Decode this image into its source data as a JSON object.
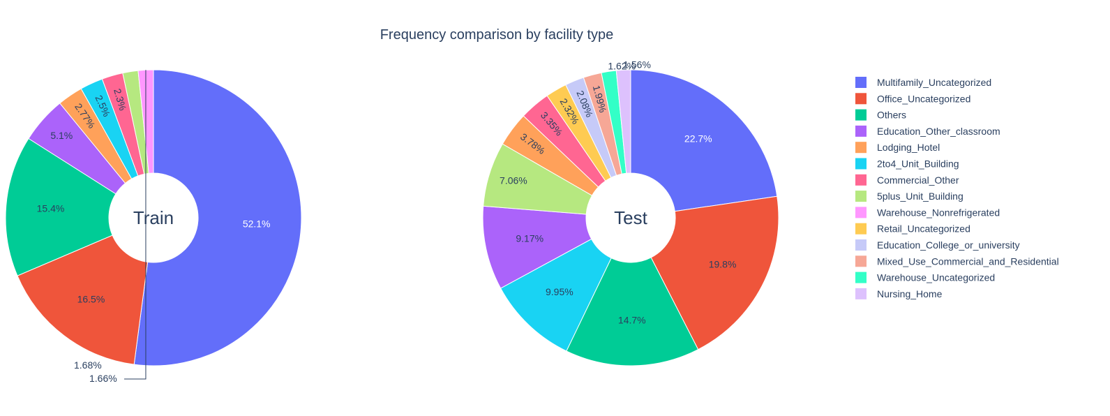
{
  "chart_data": [
    {
      "type": "pie",
      "title": "Frequency comparison by facility type",
      "center_label": "Train",
      "labels": [
        "Multifamily_Uncategorized",
        "Office_Uncategorized",
        "Others",
        "Education_Other_classroom",
        "Lodging_Hotel",
        "2to4_Unit_Building",
        "Commercial_Other",
        "5plus_Unit_Building",
        "Warehouse_Nonrefrigerated"
      ],
      "values": [
        52.1,
        16.5,
        15.4,
        5.1,
        2.77,
        2.5,
        2.3,
        1.68,
        1.66
      ],
      "value_labels": [
        "52.1%",
        "16.5%",
        "15.4%",
        "5.1%",
        "2.77%",
        "2.5%",
        "2.3%",
        "1.68%",
        "1.66%"
      ]
    },
    {
      "type": "pie",
      "center_label": "Test",
      "labels": [
        "Multifamily_Uncategorized",
        "Office_Uncategorized",
        "Others",
        "2to4_Unit_Building",
        "Education_Other_classroom",
        "5plus_Unit_Building",
        "Lodging_Hotel",
        "Commercial_Other",
        "Retail_Uncategorized",
        "Education_College_or_university",
        "Mixed_Use_Commercial_and_Residential",
        "Warehouse_Uncategorized",
        "Nursing_Home"
      ],
      "values": [
        22.7,
        19.8,
        14.7,
        9.95,
        9.17,
        7.06,
        3.78,
        3.35,
        2.32,
        2.08,
        1.99,
        1.62,
        1.56
      ],
      "value_labels": [
        "22.7%",
        "19.8%",
        "14.7%",
        "9.95%",
        "9.17%",
        "7.06%",
        "3.78%",
        "3.35%",
        "2.32%",
        "2.08%",
        "1.99%",
        "1.62%",
        "1.56%"
      ]
    }
  ],
  "legend": {
    "placement": "right",
    "items": [
      {
        "label": "Multifamily_Uncategorized",
        "color": "#636efa"
      },
      {
        "label": "Office_Uncategorized",
        "color": "#ef553b"
      },
      {
        "label": "Others",
        "color": "#00cc96"
      },
      {
        "label": "Education_Other_classroom",
        "color": "#ab63fa"
      },
      {
        "label": "Lodging_Hotel",
        "color": "#ffa15a"
      },
      {
        "label": "2to4_Unit_Building",
        "color": "#19d3f3"
      },
      {
        "label": "Commercial_Other",
        "color": "#ff6692"
      },
      {
        "label": "5plus_Unit_Building",
        "color": "#b6e880"
      },
      {
        "label": "Warehouse_Nonrefrigerated",
        "color": "#ff97ff"
      },
      {
        "label": "Retail_Uncategorized",
        "color": "#fecb52"
      },
      {
        "label": "Education_College_or_university",
        "color": "#c6caf8"
      },
      {
        "label": "Mixed_Use_Commercial_and_Residential",
        "color": "#f6a796"
      },
      {
        "label": "Warehouse_Uncategorized",
        "color": "#33ffc7"
      },
      {
        "label": "Nursing_Home",
        "color": "#ddc1fd"
      }
    ]
  }
}
